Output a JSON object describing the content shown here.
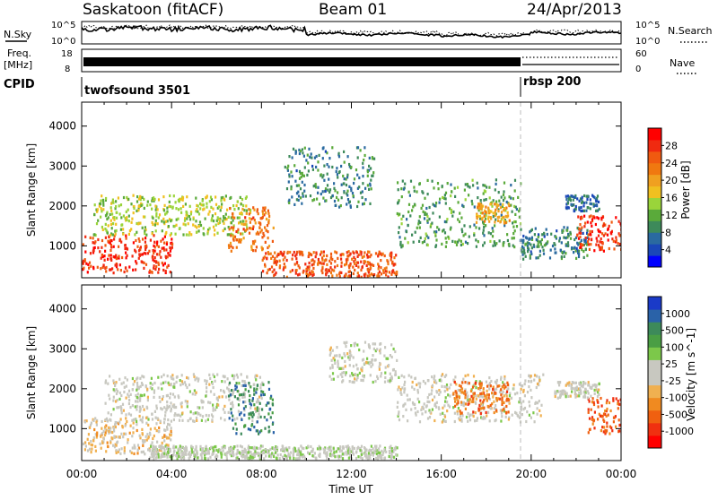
{
  "header": {
    "station": "Saskatoon (fitACF)",
    "beam": "Beam 01",
    "date": "24/Apr/2013"
  },
  "strips": {
    "nsky_label": "N.Sky",
    "nsearch_label": "N.Search",
    "noise_ticks": [
      "10^5",
      "10^0"
    ],
    "freq_label_line1": "Freq.",
    "freq_label_line2": "[MHz]",
    "freq_ticks": [
      "18",
      "8"
    ],
    "nave_label": "Nave",
    "nave_ticks": [
      "60",
      "0"
    ],
    "cpid_label": "CPID",
    "cpid_modes": [
      {
        "name": "twofsound 3501",
        "start_hr": 0
      },
      {
        "name": "rbsp 200",
        "start_hr": 19.5
      }
    ]
  },
  "x_axis": {
    "label": "Time UT",
    "ticks": [
      "00:00",
      "04:00",
      "08:00",
      "12:00",
      "16:00",
      "20:00",
      "00:00"
    ],
    "range_hr": [
      0,
      24
    ]
  },
  "power_panel": {
    "ylabel": "Slant Range [km]",
    "yticks": [
      "4000",
      "3000",
      "2000",
      "1000"
    ],
    "ylim": [
      200,
      4600
    ],
    "colorbar_label": "Power [dB]",
    "colorbar_ticks": [
      "28",
      "24",
      "20",
      "16",
      "12",
      "8",
      "4"
    ],
    "colors": [
      "#0000ff",
      "#1a47b8",
      "#2a6aa0",
      "#3d8a5a",
      "#5aaa3a",
      "#9ad43a",
      "#f0c020",
      "#f0a020",
      "#f07810",
      "#f05a10",
      "#f02a10",
      "#ff0000"
    ]
  },
  "velocity_panel": {
    "ylabel": "Slant Range [km]",
    "yticks": [
      "4000",
      "3000",
      "2000",
      "1000"
    ],
    "ylim": [
      200,
      4600
    ],
    "colorbar_label": "Velocity [m s^-1]",
    "colorbar_ticks": [
      "1000",
      "500",
      "100",
      "25",
      "-25",
      "-100",
      "-500",
      "-1000"
    ],
    "colors": [
      "#1a3ac8",
      "#2a62a8",
      "#3d8a5a",
      "#4a9e44",
      "#7cc84a",
      "#c8c8c0",
      "#c8c8c0",
      "#f0b050",
      "#f08a20",
      "#f06010",
      "#f03010",
      "#ff0000"
    ]
  },
  "chart_data": [
    {
      "type": "heatmap",
      "title": "Power",
      "xlabel": "Time UT",
      "ylabel": "Slant Range [km]",
      "xlim": [
        0,
        24
      ],
      "ylim": [
        200,
        4600
      ],
      "colorbar": {
        "label": "Power [dB]",
        "range": [
          0,
          30
        ]
      },
      "echo_bands": [
        {
          "t0": 0.0,
          "t1": 4.0,
          "r0": 350,
          "r1": 1300,
          "value": 26
        },
        {
          "t0": 0.5,
          "t1": 7.5,
          "r0": 1300,
          "r1": 2300,
          "value": 14
        },
        {
          "t0": 6.5,
          "t1": 8.5,
          "r0": 900,
          "r1": 2000,
          "value": 22
        },
        {
          "t0": 8.0,
          "t1": 14.0,
          "r0": 250,
          "r1": 900,
          "value": 24
        },
        {
          "t0": 9.0,
          "t1": 13.0,
          "r0": 2000,
          "r1": 3500,
          "value": 8
        },
        {
          "t0": 14.0,
          "t1": 19.5,
          "r0": 1000,
          "r1": 2700,
          "value": 10
        },
        {
          "t0": 17.5,
          "t1": 19.0,
          "r0": 1600,
          "r1": 2100,
          "value": 18
        },
        {
          "t0": 19.5,
          "t1": 22.5,
          "r0": 700,
          "r1": 1500,
          "value": 8
        },
        {
          "t0": 22.0,
          "t1": 24.0,
          "r0": 900,
          "r1": 1800,
          "value": 26
        },
        {
          "t0": 21.5,
          "t1": 23.0,
          "r0": 1900,
          "r1": 2300,
          "value": 6
        }
      ]
    },
    {
      "type": "heatmap",
      "title": "Velocity",
      "xlabel": "Time UT",
      "ylabel": "Slant Range [km]",
      "xlim": [
        0,
        24
      ],
      "ylim": [
        200,
        4600
      ],
      "colorbar": {
        "label": "Velocity [m s^-1]",
        "range": [
          -1000,
          1000
        ]
      },
      "echo_bands": [
        {
          "t0": 0.0,
          "t1": 4.0,
          "r0": 400,
          "r1": 1300,
          "value": -150
        },
        {
          "t0": 1.0,
          "t1": 8.0,
          "r0": 1200,
          "r1": 2400,
          "value": 0
        },
        {
          "t0": 6.5,
          "t1": 8.5,
          "r0": 900,
          "r1": 2200,
          "value": 600
        },
        {
          "t0": 3.0,
          "t1": 14.0,
          "r0": 280,
          "r1": 600,
          "value": 60
        },
        {
          "t0": 11.0,
          "t1": 14.0,
          "r0": 2200,
          "r1": 3200,
          "value": 0
        },
        {
          "t0": 14.0,
          "t1": 20.5,
          "r0": 1200,
          "r1": 2400,
          "value": 0
        },
        {
          "t0": 16.5,
          "t1": 19.0,
          "r0": 1400,
          "r1": 2200,
          "value": -500
        },
        {
          "t0": 22.5,
          "t1": 24.0,
          "r0": 900,
          "r1": 1800,
          "value": -600
        },
        {
          "t0": 21.0,
          "t1": 23.0,
          "r0": 1800,
          "r1": 2200,
          "value": 0
        }
      ]
    }
  ]
}
